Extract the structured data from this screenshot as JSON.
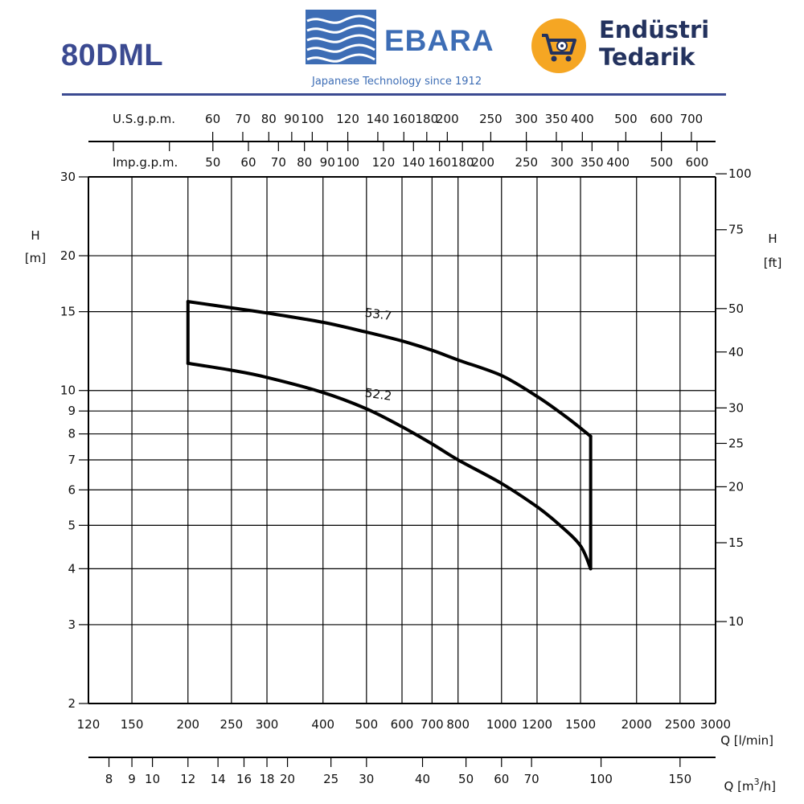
{
  "header": {
    "model": "80DML",
    "brand": "EBARA",
    "tagline": "Japanese Technology since 1912",
    "vendor_line1": "Endüstri",
    "vendor_line2": "Tedarik",
    "vendor_icon": "shopping-cart-gear-icon",
    "brand_color": "#3b4a91",
    "logo_color": "#3d6db5",
    "vendor_icon_color": "#f5a623"
  },
  "chart_data": {
    "type": "line",
    "scale": "log-log",
    "grid": true,
    "x": {
      "label": "Q [l/min]",
      "range": [
        120,
        3000
      ],
      "ticks": [
        120,
        150,
        200,
        250,
        300,
        400,
        500,
        600,
        700,
        800,
        1000,
        1200,
        1500,
        2000,
        2500,
        3000
      ]
    },
    "y": {
      "label_top": "H",
      "label_bottom": "[m]",
      "range": [
        2,
        30
      ],
      "ticks": [
        2,
        3,
        4,
        5,
        6,
        7,
        8,
        9,
        10,
        15,
        20,
        30
      ]
    },
    "y_right": {
      "label_top": "H",
      "label_bottom": "[ft]",
      "ticks": [
        10,
        15,
        20,
        25,
        30,
        40,
        50,
        75,
        100
      ]
    },
    "x_top_us": {
      "label": "U.S.g.p.m.",
      "ticks": [
        60,
        70,
        80,
        90,
        100,
        120,
        140,
        160,
        180,
        200,
        250,
        300,
        350,
        400,
        500,
        600,
        700
      ]
    },
    "x_top_imp": {
      "label": "Imp.g.p.m.",
      "ticks": [
        50,
        60,
        70,
        80,
        90,
        100,
        120,
        140,
        160,
        180,
        200,
        250,
        300,
        350,
        400,
        500,
        600
      ]
    },
    "x_bottom_m3h": {
      "label_main": "Q [m",
      "label_sup": "3",
      "label_end": "/h]",
      "ticks": [
        8,
        9,
        10,
        12,
        14,
        16,
        18,
        20,
        25,
        30,
        40,
        50,
        60,
        70,
        100,
        150
      ]
    },
    "series": [
      {
        "name": "53.7",
        "points": [
          [
            200,
            15.8
          ],
          [
            250,
            15.3
          ],
          [
            300,
            14.9
          ],
          [
            400,
            14.2
          ],
          [
            500,
            13.5
          ],
          [
            600,
            12.9
          ],
          [
            700,
            12.3
          ],
          [
            800,
            11.7
          ],
          [
            1000,
            10.8
          ],
          [
            1200,
            9.7
          ],
          [
            1400,
            8.7
          ],
          [
            1580,
            7.9
          ]
        ]
      },
      {
        "name": "52.2",
        "points": [
          [
            200,
            11.5
          ],
          [
            250,
            11.1
          ],
          [
            300,
            10.7
          ],
          [
            400,
            9.9
          ],
          [
            500,
            9.1
          ],
          [
            600,
            8.3
          ],
          [
            700,
            7.6
          ],
          [
            800,
            7.0
          ],
          [
            1000,
            6.2
          ],
          [
            1200,
            5.5
          ],
          [
            1350,
            5.0
          ],
          [
            1500,
            4.5
          ],
          [
            1580,
            4.0
          ]
        ]
      }
    ],
    "envelope_edges": [
      {
        "q": 200,
        "h_from": 11.5,
        "h_to": 15.8
      },
      {
        "q": 1580,
        "h_from": 4.0,
        "h_to": 7.9
      }
    ],
    "label_positions_q": [
      {
        "name": "53.7",
        "q": 530,
        "h": 14.5
      },
      {
        "name": "52.2",
        "q": 530,
        "h": 9.6
      }
    ]
  }
}
